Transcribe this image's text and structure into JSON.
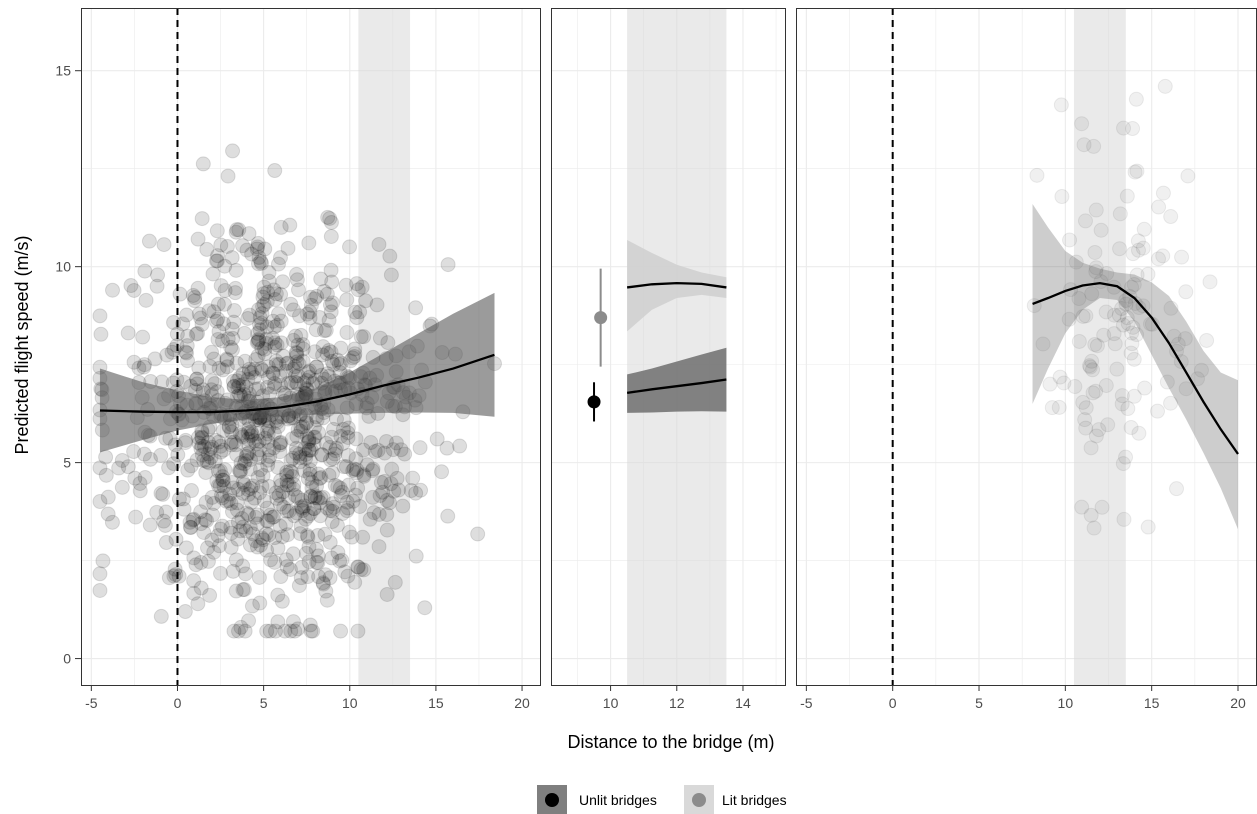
{
  "chart_data": {
    "type": "scatter",
    "xlabel": "Distance to the bridge (m)",
    "ylabel": "Predicted flight speed (m/s)",
    "ylim": [
      -0.7,
      16.6
    ],
    "yticks": [
      0,
      5,
      10,
      15
    ],
    "grid": true,
    "legend_position": "bottom",
    "legend": [
      {
        "label": "Unlit bridges",
        "point_color": "#000000",
        "key_fill": "#7f7f7f"
      },
      {
        "label": "Lit bridges",
        "point_color": "#8c8c8c",
        "key_fill": "#d9d9d9"
      }
    ],
    "panels": [
      {
        "xlim": [
          -5.6,
          21.1
        ],
        "xticks": [
          -5,
          0,
          5,
          10,
          15,
          20
        ],
        "shaded_region": [
          10.5,
          13.5
        ],
        "dashed_vline": 0,
        "scatter": {
          "n": 1000,
          "x_range": [
            -4.5,
            18.4
          ],
          "y_range": [
            0.7,
            15.0
          ],
          "x_center": 5.5,
          "y_center": 6.0
        },
        "fit": {
          "x": [
            -4.5,
            -2,
            0,
            2,
            4,
            6,
            8,
            10,
            12,
            14,
            16,
            18.4
          ],
          "y": [
            6.33,
            6.3,
            6.29,
            6.29,
            6.33,
            6.41,
            6.55,
            6.74,
            6.97,
            7.17,
            7.4,
            7.75
          ],
          "lower": [
            5.26,
            5.58,
            5.82,
            5.99,
            6.1,
            6.18,
            6.22,
            6.25,
            6.27,
            6.28,
            6.27,
            6.17
          ],
          "upper": [
            7.4,
            7.05,
            6.84,
            6.67,
            6.6,
            6.67,
            6.9,
            7.3,
            7.8,
            8.3,
            8.8,
            9.33
          ]
        }
      },
      {
        "xlim": [
          8.2,
          15.3
        ],
        "xticks": [
          10,
          12,
          14
        ],
        "shaded_region": [
          10.5,
          13.5
        ],
        "points": [
          {
            "group": "Unlit bridges",
            "x": 9.5,
            "y": 6.55,
            "lower": 6.05,
            "upper": 7.05
          },
          {
            "group": "Lit bridges",
            "x": 9.7,
            "y": 8.7,
            "lower": 7.45,
            "upper": 9.95
          }
        ],
        "fits": [
          {
            "group": "Lit bridges",
            "x": [
              10.5,
              11.25,
              12,
              12.75,
              13.5
            ],
            "y": [
              9.47,
              9.55,
              9.58,
              9.56,
              9.47
            ],
            "lower": [
              8.35,
              8.9,
              9.2,
              9.28,
              9.2
            ],
            "upper": [
              10.68,
              10.35,
              10.05,
              9.85,
              9.73
            ]
          },
          {
            "group": "Unlit bridges",
            "x": [
              10.5,
              11.25,
              12,
              12.75,
              13.5
            ],
            "y": [
              6.78,
              6.87,
              6.95,
              7.03,
              7.12
            ],
            "lower": [
              6.27,
              6.28,
              6.3,
              6.31,
              6.3
            ],
            "upper": [
              7.25,
              7.4,
              7.58,
              7.76,
              7.93
            ]
          }
        ]
      },
      {
        "xlim": [
          -5.6,
          21.1
        ],
        "xticks": [
          -5,
          0,
          5,
          10,
          15,
          20
        ],
        "shaded_region": [
          10.5,
          13.5
        ],
        "dashed_vline": 0,
        "scatter": {
          "n": 130,
          "x_range": [
            8.2,
            20.0
          ],
          "y_range": [
            1.2,
            14.6
          ],
          "x_center": 13.2,
          "y_center": 8.3
        },
        "fit": {
          "x": [
            8.1,
            9,
            10,
            11,
            12,
            13,
            14,
            15,
            16,
            17,
            18,
            19,
            20
          ],
          "y": [
            9.05,
            9.2,
            9.38,
            9.52,
            9.58,
            9.5,
            9.2,
            8.7,
            8.05,
            7.3,
            6.55,
            5.85,
            5.22
          ],
          "lower": [
            6.5,
            7.4,
            8.3,
            8.9,
            9.2,
            9.15,
            8.6,
            7.75,
            6.9,
            6.1,
            5.25,
            4.35,
            3.3
          ],
          "upper": [
            11.6,
            11.0,
            10.4,
            10.1,
            9.95,
            9.85,
            9.8,
            9.6,
            9.25,
            8.6,
            7.85,
            7.3,
            7.1
          ]
        }
      }
    ]
  }
}
